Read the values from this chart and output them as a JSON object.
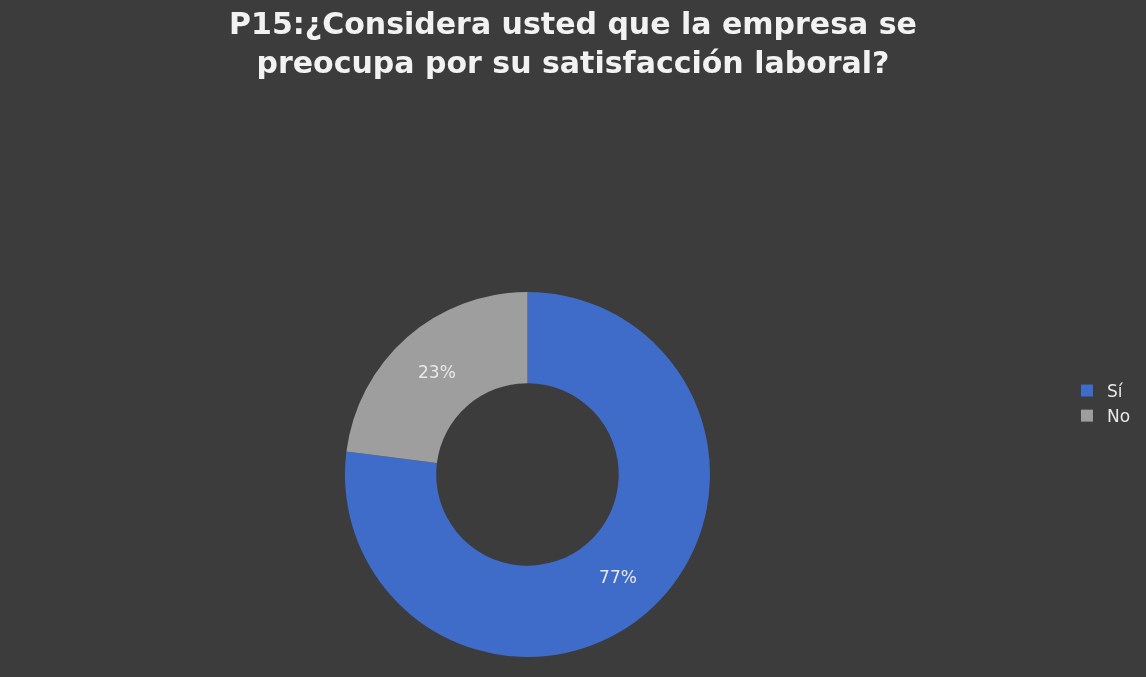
{
  "chart_data": {
    "type": "donut",
    "title": "P15:¿Considera usted que la empresa se preocupa por su satisfacción laboral?",
    "categories": [
      "Sí",
      "No"
    ],
    "values": [
      77,
      23
    ],
    "value_labels": [
      "77%",
      "23%"
    ],
    "colors": [
      "#3f6cc8",
      "#9e9e9e"
    ],
    "legend": "right"
  }
}
